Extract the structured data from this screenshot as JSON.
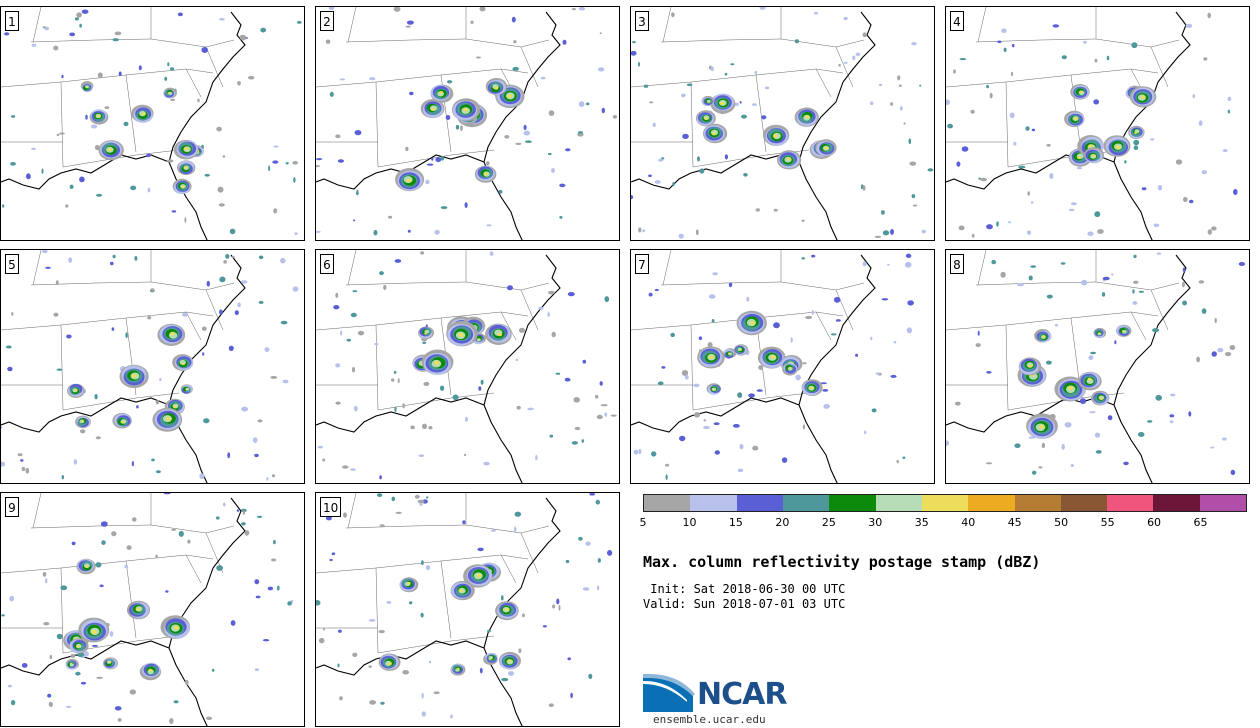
{
  "panels": [
    {
      "label": "1"
    },
    {
      "label": "2"
    },
    {
      "label": "3"
    },
    {
      "label": "4"
    },
    {
      "label": "5"
    },
    {
      "label": "6"
    },
    {
      "label": "7"
    },
    {
      "label": "8"
    },
    {
      "label": "9"
    },
    {
      "label": "10"
    }
  ],
  "colorbar": {
    "ticks": [
      "5",
      "10",
      "15",
      "20",
      "25",
      "30",
      "35",
      "40",
      "45",
      "50",
      "55",
      "60",
      "65"
    ],
    "colors": [
      "#a6a6a6",
      "#b7c1eb",
      "#5a5fd6",
      "#4e979b",
      "#0b8a0b",
      "#b6dcb6",
      "#eedc5b",
      "#edab21",
      "#b57d34",
      "#8a5735",
      "#f0557d",
      "#6b1538",
      "#b04ea8"
    ]
  },
  "title": "Max. column reflectivity postage stamp (dBZ)",
  "init": " Init: Sat 2018-06-30 00 UTC",
  "valid": "Valid: Sun 2018-07-01 03 UTC",
  "logo": {
    "text": "NCAR",
    "url_text": "ensemble.ucar.edu",
    "color": "#1d4f8a"
  }
}
